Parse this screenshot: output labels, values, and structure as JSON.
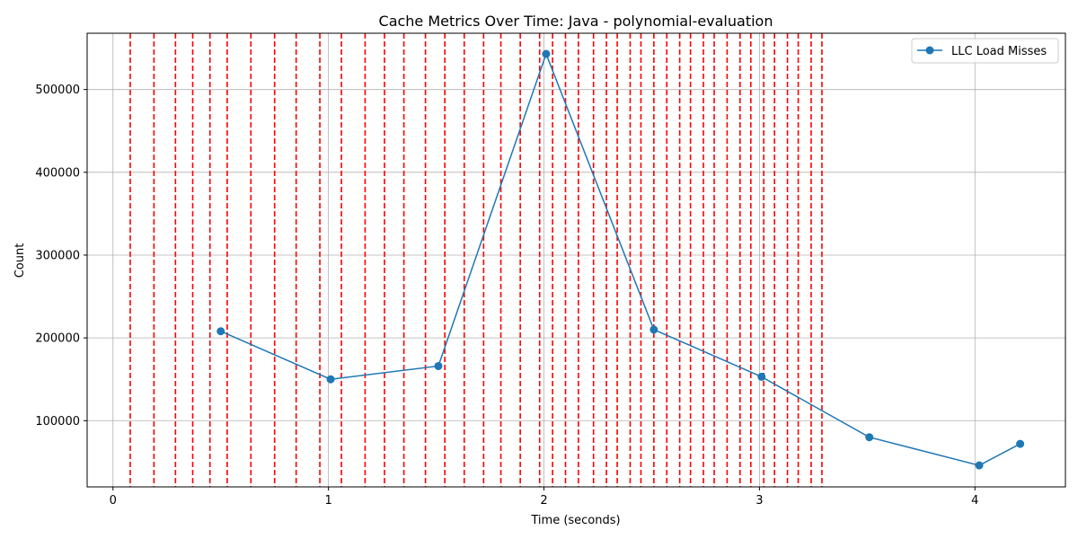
{
  "chart_data": {
    "type": "line",
    "title": "Cache Metrics Over Time: Java - polynomial-evaluation",
    "xlabel": "Time (seconds)",
    "ylabel": "Count",
    "xlim": [
      -0.12,
      4.42
    ],
    "ylim": [
      20000,
      568000
    ],
    "xticks": [
      0,
      1,
      2,
      3,
      4
    ],
    "xtick_labels": [
      "0",
      "1",
      "2",
      "3",
      "4"
    ],
    "yticks": [
      100000,
      200000,
      300000,
      400000,
      500000
    ],
    "ytick_labels": [
      "100000",
      "200000",
      "300000",
      "400000",
      "500000"
    ],
    "grid": true,
    "legend_position": "top-right",
    "series": [
      {
        "name": "LLC Load Misses",
        "color": "#1f77b4",
        "marker": "circle",
        "x": [
          0.5,
          1.01,
          1.51,
          2.01,
          2.51,
          3.01,
          3.51,
          4.02,
          4.21
        ],
        "y": [
          208000,
          150000,
          166000,
          543000,
          210000,
          153000,
          80000,
          46000,
          72000
        ]
      }
    ],
    "vertical_markers": {
      "color": "#ff0000",
      "style": "dashed",
      "x": [
        0.08,
        0.19,
        0.29,
        0.37,
        0.45,
        0.53,
        0.64,
        0.75,
        0.85,
        0.96,
        1.06,
        1.17,
        1.26,
        1.35,
        1.45,
        1.54,
        1.63,
        1.72,
        1.8,
        1.89,
        1.98,
        2.04,
        2.1,
        2.16,
        2.23,
        2.29,
        2.34,
        2.4,
        2.45,
        2.51,
        2.57,
        2.63,
        2.68,
        2.74,
        2.79,
        2.85,
        2.91,
        2.96,
        3.02,
        3.07,
        3.13,
        3.18,
        3.24,
        3.29
      ]
    }
  }
}
